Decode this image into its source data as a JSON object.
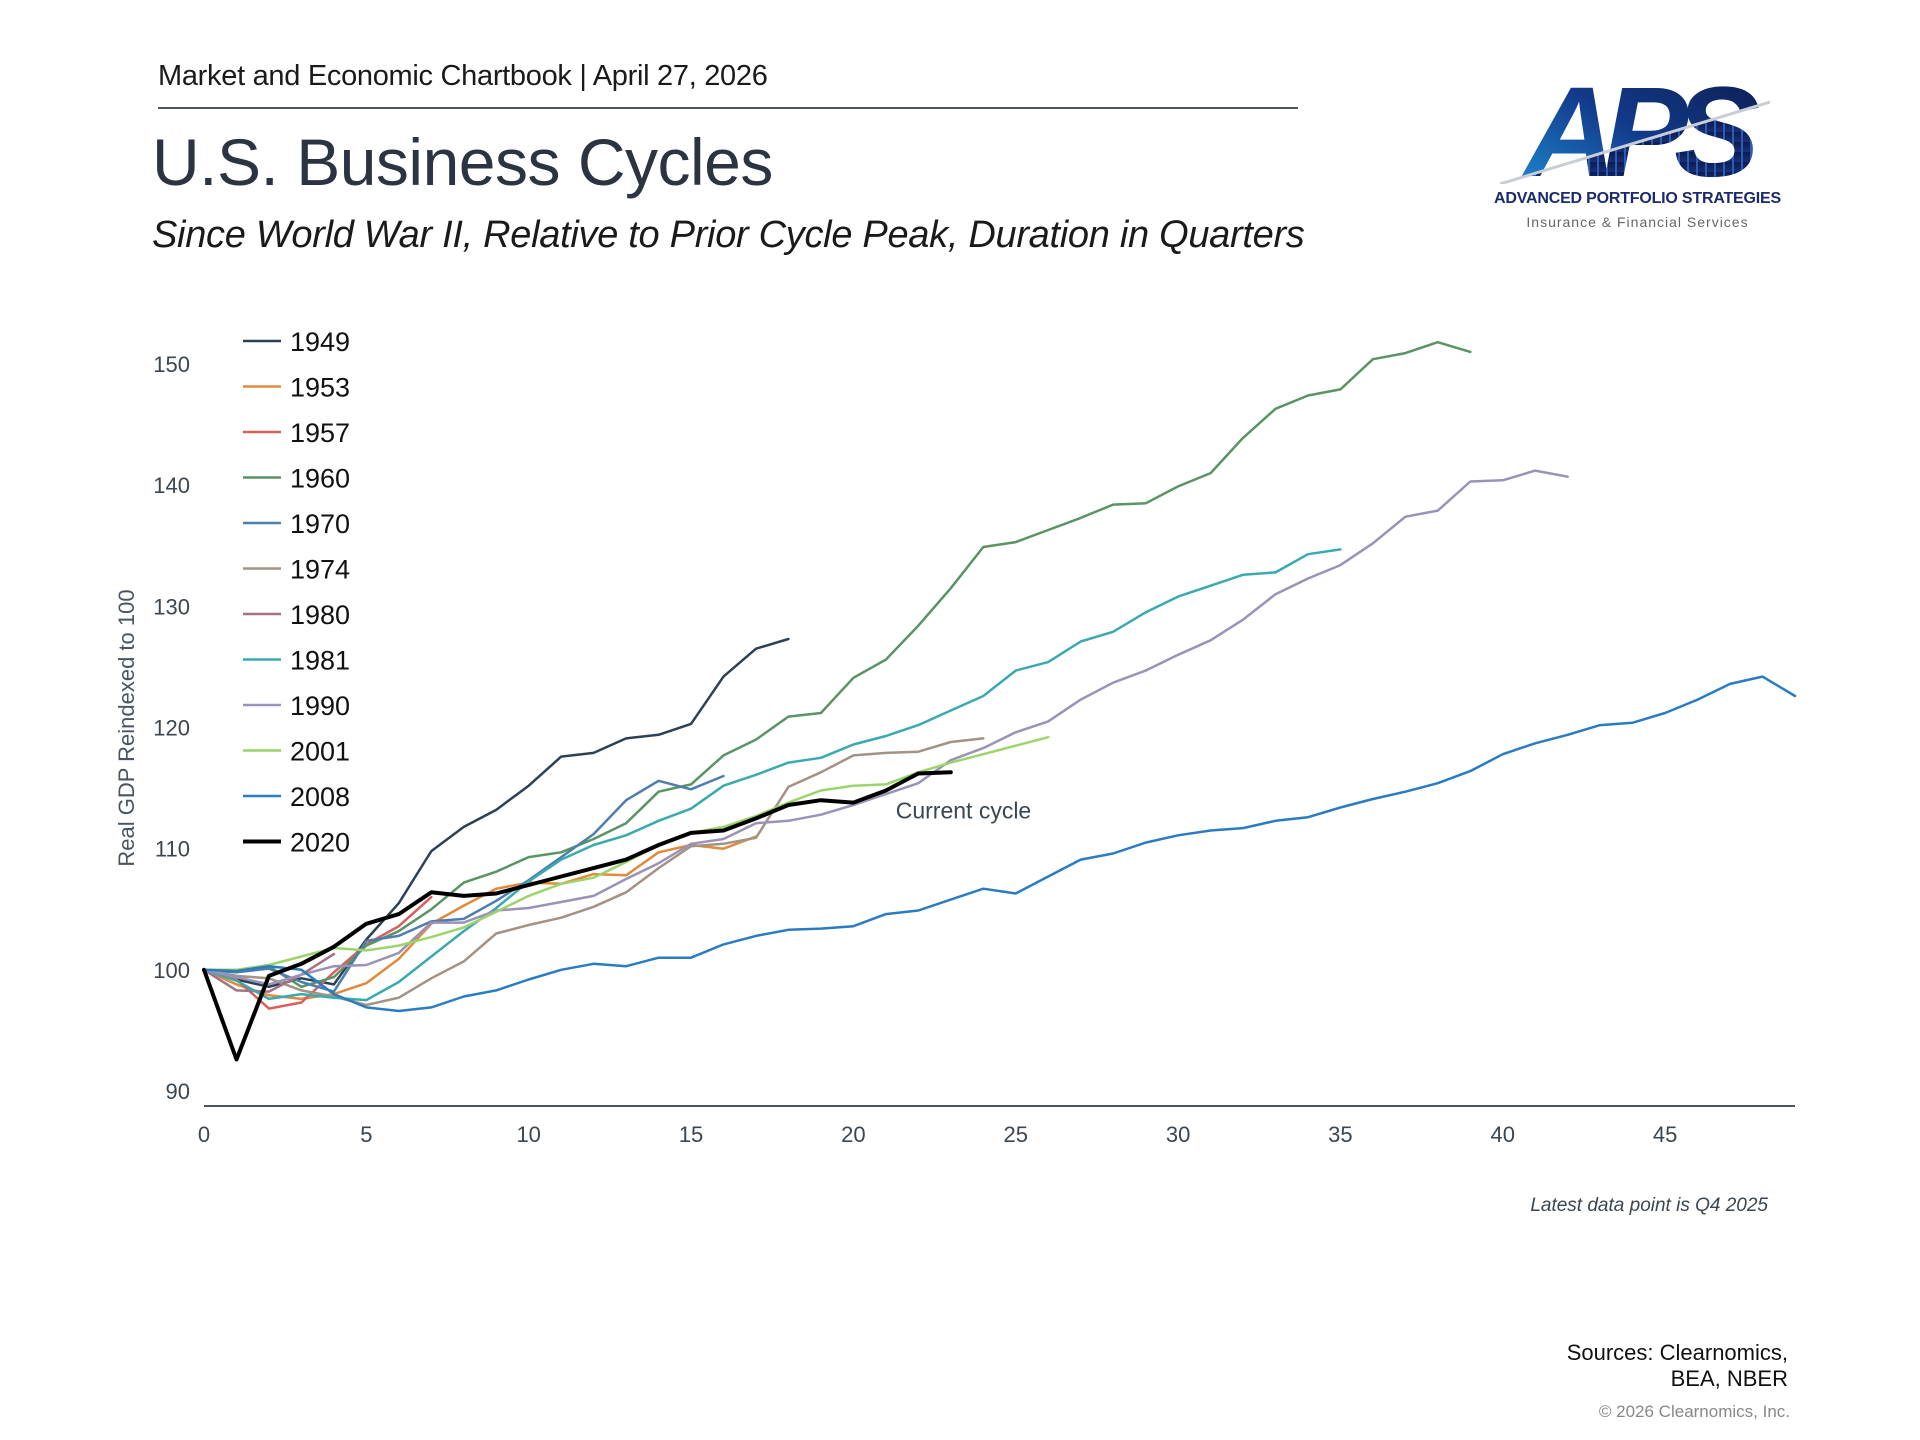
{
  "header": {
    "kicker": "Market and Economic Chartbook | April 27, 2026",
    "title": "U.S. Business Cycles",
    "subtitle": "Since World War II, Relative to Prior Cycle Peak, Duration in Quarters"
  },
  "logo": {
    "mark": "APS",
    "name": "ADVANCED PORTFOLIO STRATEGIES",
    "tagline": "Insurance & Financial Services",
    "colors": {
      "dark": "#0d1b4d",
      "light": "#1e8fd6"
    }
  },
  "footer": {
    "footnote": "Latest data point is Q4 2025",
    "sources_line1": "Sources: Clearnomics,",
    "sources_line2": "BEA, NBER",
    "copyright": "© 2026 Clearnomics, Inc."
  },
  "chart_data": {
    "type": "line",
    "title": "U.S. Business Cycles",
    "xlabel": "",
    "ylabel": "Real GDP Reindexed to 100",
    "xlim": [
      0,
      49
    ],
    "ylim": [
      90,
      150
    ],
    "x_ticks": [
      0,
      5,
      10,
      15,
      20,
      25,
      30,
      35,
      40,
      45
    ],
    "y_ticks": [
      90,
      100,
      110,
      120,
      130,
      140,
      150
    ],
    "grid": false,
    "legend_position": "top-left",
    "annotations": [
      {
        "text": "Current cycle",
        "x": 25,
        "y": 113
      }
    ],
    "series": [
      {
        "name": "1949",
        "color": "#2e4154",
        "width": 2.5,
        "values": [
          100,
          99.2,
          98.6,
          99.3,
          98.8,
          102.5,
          105.5,
          109.8,
          111.8,
          113.2,
          115.2,
          117.6,
          117.9,
          119.1,
          119.4,
          120.3,
          124.2,
          126.5,
          127.3
        ]
      },
      {
        "name": "1953",
        "color": "#e08a3c",
        "width": 2.5,
        "values": [
          100,
          98.8,
          97.9,
          97.6,
          98.0,
          98.9,
          100.9,
          103.8,
          105.3,
          106.7,
          107.2,
          107.1,
          107.9,
          107.8,
          109.7,
          110.3,
          110.0,
          111.0
        ]
      },
      {
        "name": "1957",
        "color": "#d95f5f",
        "width": 2.5,
        "values": [
          100,
          99.2,
          96.8,
          97.3,
          99.8,
          102.1,
          103.6,
          106.0
        ]
      },
      {
        "name": "1960",
        "color": "#5a9464",
        "width": 2.5,
        "values": [
          100,
          99.8,
          100.3,
          98.6,
          99.4,
          102.0,
          103.2,
          105.0,
          107.2,
          108.1,
          109.3,
          109.7,
          110.8,
          112.1,
          114.7,
          115.3,
          117.7,
          119.0,
          120.9,
          121.2,
          124.1,
          125.6,
          128.4,
          131.5,
          134.9,
          135.3,
          136.3,
          137.3,
          138.4,
          138.5,
          139.9,
          141.0,
          143.9,
          146.3,
          147.4,
          147.9,
          150.4,
          150.9,
          151.8,
          151.0
        ]
      },
      {
        "name": "1970",
        "color": "#4d7fae",
        "width": 2.5,
        "values": [
          100,
          99.8,
          100.1,
          99.0,
          98.2,
          102.4,
          102.8,
          104.0,
          104.2,
          105.7,
          107.4,
          109.3,
          111.2,
          114.0,
          115.6,
          114.9,
          116.0
        ]
      },
      {
        "name": "1974",
        "color": "#a39384",
        "width": 2.5,
        "values": [
          100,
          99.5,
          99.3,
          98.3,
          97.8,
          97.1,
          97.7,
          99.3,
          100.7,
          103.0,
          103.7,
          104.3,
          105.2,
          106.4,
          108.4,
          110.2,
          110.4,
          110.9,
          115.1,
          116.3,
          117.7,
          117.9,
          118.0,
          118.8,
          119.1
        ]
      },
      {
        "name": "1980",
        "color": "#a37383",
        "width": 2.5,
        "values": [
          100,
          98.3,
          98.2,
          99.6,
          101.3
        ]
      },
      {
        "name": "1981",
        "color": "#39aab0",
        "width": 2.5,
        "values": [
          100,
          99.1,
          97.6,
          98.0,
          97.7,
          97.5,
          99.0,
          101.1,
          103.2,
          105.1,
          107.3,
          109.1,
          110.3,
          111.1,
          112.3,
          113.3,
          115.2,
          116.1,
          117.1,
          117.5,
          118.6,
          119.3,
          120.2,
          121.4,
          122.6,
          124.7,
          125.4,
          127.1,
          127.9,
          129.5,
          130.8,
          131.7,
          132.6,
          132.8,
          134.3,
          134.7
        ]
      },
      {
        "name": "1990",
        "color": "#9a92b8",
        "width": 2.5,
        "values": [
          100,
          99.4,
          98.8,
          99.6,
          100.3,
          100.4,
          101.4,
          103.9,
          103.9,
          104.9,
          105.1,
          105.6,
          106.1,
          107.5,
          108.8,
          110.4,
          110.8,
          112.1,
          112.3,
          112.8,
          113.6,
          114.5,
          115.4,
          117.3,
          118.3,
          119.6,
          120.5,
          122.3,
          123.7,
          124.7,
          126.0,
          127.2,
          128.9,
          131.0,
          132.3,
          133.4,
          135.2,
          137.4,
          137.9,
          140.3,
          140.4,
          141.2,
          140.7
        ]
      },
      {
        "name": "2001",
        "color": "#9bd46a",
        "width": 2.5,
        "values": [
          100,
          100.0,
          100.4,
          101.1,
          101.8,
          101.6,
          102.0,
          102.7,
          103.5,
          104.8,
          106.1,
          107.1,
          107.6,
          108.9,
          110.3,
          111.3,
          111.8,
          112.7,
          113.8,
          114.8,
          115.2,
          115.3,
          116.3,
          117.1,
          117.8,
          118.5,
          119.2
        ]
      },
      {
        "name": "2008",
        "color": "#2a7cc2",
        "width": 2.5,
        "values": [
          100,
          99.9,
          100.3,
          100.0,
          98.0,
          96.9,
          96.6,
          96.9,
          97.8,
          98.3,
          99.2,
          100.0,
          100.5,
          100.3,
          101.0,
          101.0,
          102.1,
          102.8,
          103.3,
          103.4,
          103.6,
          104.6,
          104.9,
          105.8,
          106.7,
          106.3,
          107.7,
          109.1,
          109.6,
          110.5,
          111.1,
          111.5,
          111.7,
          112.3,
          112.6,
          113.4,
          114.1,
          114.7,
          115.4,
          116.4,
          117.8,
          118.7,
          119.4,
          120.2,
          120.4,
          121.2,
          122.3,
          123.6,
          124.2,
          122.6
        ]
      },
      {
        "name": "2020",
        "color": "#000000",
        "width": 4,
        "values": [
          100,
          92.6,
          99.5,
          100.5,
          101.9,
          103.8,
          104.6,
          106.4,
          106.1,
          106.3,
          107.0,
          107.7,
          108.4,
          109.1,
          110.3,
          111.3,
          111.5,
          112.5,
          113.6,
          114.0,
          113.8,
          114.8,
          116.2,
          116.3
        ]
      }
    ]
  }
}
